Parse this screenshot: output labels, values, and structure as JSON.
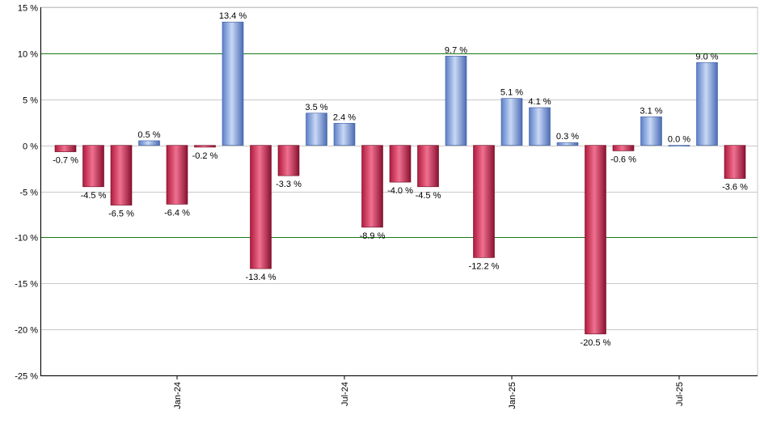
{
  "chart_data": {
    "type": "bar",
    "title": "",
    "xlabel": "",
    "ylabel": "",
    "ylim": [
      -25,
      15
    ],
    "y_ticks": [
      15,
      10,
      5,
      0,
      -5,
      -10,
      -15,
      -20,
      -25
    ],
    "y_tick_labels": [
      "15 %",
      "10 %",
      "5 %",
      "0 %",
      "-5 %",
      "-10 %",
      "-15 %",
      "-20 %",
      "-25 %"
    ],
    "reference_lines": [
      10,
      -10
    ],
    "x_tick_labels": [
      {
        "label": "Jan-24",
        "index": 4
      },
      {
        "label": "Jul-24",
        "index": 10
      },
      {
        "label": "Jan-25",
        "index": 16
      },
      {
        "label": "Jul-25",
        "index": 22
      }
    ],
    "values": [
      -0.7,
      -4.5,
      -6.5,
      0.5,
      -6.4,
      -0.2,
      13.4,
      -13.4,
      -3.3,
      3.5,
      2.4,
      -8.9,
      -4.0,
      -4.5,
      9.7,
      -12.2,
      5.1,
      4.1,
      0.3,
      -20.5,
      -0.6,
      3.1,
      0.0,
      9.0,
      -3.6
    ],
    "labels": [
      "-0.7 %",
      "-4.5 %",
      "-6.5 %",
      "0.5 %",
      "-6.4 %",
      "-0.2 %",
      "13.4 %",
      "-13.4 %",
      "-3.3 %",
      "3.5 %",
      "2.4 %",
      "-8.9 %",
      "-4.0 %",
      "-4.5 %",
      "9.7 %",
      "-12.2 %",
      "5.1 %",
      "4.1 %",
      "0.3 %",
      "-20.5 %",
      "-0.6 %",
      "3.1 %",
      "0.0 %",
      "9.0 %",
      "-3.6 %"
    ],
    "grid": true,
    "colors": {
      "positive": "#7f9fdc",
      "negative": "#c8244a",
      "reference_line": "#1a7a1a",
      "grid": "#c8c8c8",
      "axis": "#000000"
    }
  }
}
